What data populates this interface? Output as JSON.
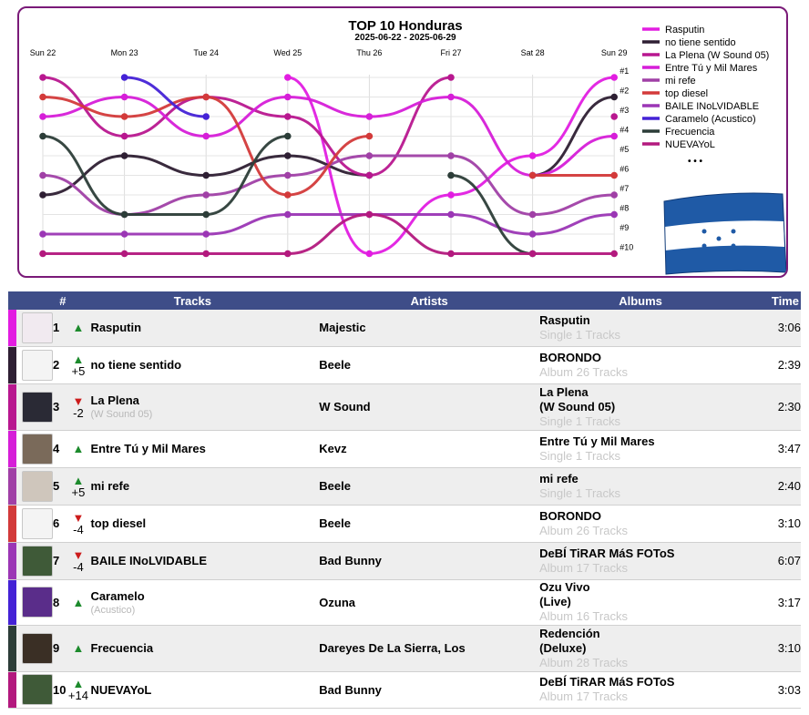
{
  "chart_data": {
    "type": "line",
    "title": "TOP 10 Honduras",
    "subtitle": "2025-06-22 - 2025-06-29",
    "x": [
      "Sun 22",
      "Mon 23",
      "Tue 24",
      "Wed 25",
      "Thu 26",
      "Fri 27",
      "Sat 28",
      "Sun 29"
    ],
    "rank_labels": [
      "#1",
      "#2",
      "#3",
      "#4",
      "#5",
      "#6",
      "#7",
      "#8",
      "#9",
      "#10"
    ],
    "ylim": [
      1,
      10
    ],
    "y_inverted": true,
    "legend_placement": "top-right",
    "legend_more": "• • •",
    "series": [
      {
        "name": "Rasputin",
        "color": "#e21de1",
        "values": [
          null,
          null,
          null,
          1,
          10,
          7,
          5,
          1
        ]
      },
      {
        "name": "no tiene sentido",
        "color": "#2e1f33",
        "values": [
          7,
          5,
          6,
          5,
          6,
          null,
          6,
          2
        ]
      },
      {
        "name": "La Plena (W Sound 05)",
        "color": "#b8178f",
        "values": [
          1,
          4,
          2,
          3,
          6,
          1,
          null,
          3
        ]
      },
      {
        "name": "Entre Tú y Mil Mares",
        "color": "#d61ed8",
        "values": [
          3,
          2,
          4,
          2,
          3,
          2,
          6,
          4
        ]
      },
      {
        "name": "mi refe",
        "color": "#a040a6",
        "values": [
          6,
          8,
          7,
          6,
          5,
          5,
          8,
          7
        ]
      },
      {
        "name": "top diesel",
        "color": "#d33a3a",
        "values": [
          2,
          3,
          2,
          7,
          4,
          null,
          6,
          6
        ]
      },
      {
        "name": "BAILE INoLVIDABLE",
        "color": "#9b36b5",
        "values": [
          9,
          9,
          9,
          8,
          8,
          8,
          9,
          8
        ]
      },
      {
        "name": "Caramelo (Acustico)",
        "color": "#4422d6",
        "values": [
          null,
          1,
          3,
          null,
          null,
          null,
          null,
          null
        ]
      },
      {
        "name": "Frecuencia",
        "color": "#2c3d38",
        "values": [
          4,
          8,
          8,
          4,
          null,
          6,
          10,
          null
        ]
      },
      {
        "name": "NUEVAYoL",
        "color": "#b3197e",
        "values": [
          10,
          10,
          10,
          10,
          8,
          10,
          10,
          10
        ]
      }
    ]
  },
  "table": {
    "headers": {
      "num": "#",
      "tracks": "Tracks",
      "artists": "Artists",
      "albums": "Albums",
      "time": "Time"
    },
    "rows": [
      {
        "rank": "1",
        "title": "Rasputin",
        "subtitle": "",
        "move": "",
        "dir": "up",
        "artist": "Majestic",
        "album": "Rasputin",
        "album_sub": "Single 1 Tracks",
        "time": "3:06",
        "color": "#e21de1",
        "thumb": "#f1eaf0"
      },
      {
        "rank": "2",
        "title": "no tiene sentido",
        "subtitle": "",
        "move": "+5",
        "dir": "up",
        "artist": "Beele",
        "album": "BORONDO",
        "album_sub": "Album 26 Tracks",
        "time": "2:39",
        "color": "#2e1f33",
        "thumb": "#f4f4f4"
      },
      {
        "rank": "3",
        "title": "La Plena",
        "subtitle": "(W Sound 05)",
        "move": "-2",
        "dir": "down",
        "artist": "W Sound",
        "album": "La Plena\n(W Sound 05)",
        "album_sub": "Single 1 Tracks",
        "time": "2:30",
        "color": "#b8178f",
        "thumb": "#2a2a35"
      },
      {
        "rank": "4",
        "title": "Entre Tú y Mil Mares",
        "subtitle": "",
        "move": "",
        "dir": "up",
        "artist": "Kevz",
        "album": "Entre Tú y Mil Mares",
        "album_sub": "Single 1 Tracks",
        "time": "3:47",
        "color": "#d61ed8",
        "thumb": "#7a6a5a"
      },
      {
        "rank": "5",
        "title": "mi refe",
        "subtitle": "",
        "move": "+5",
        "dir": "up",
        "artist": "Beele",
        "album": "mi refe",
        "album_sub": "Single 1 Tracks",
        "time": "2:40",
        "color": "#a040a6",
        "thumb": "#cfc6bc"
      },
      {
        "rank": "6",
        "title": "top diesel",
        "subtitle": "",
        "move": "-4",
        "dir": "down",
        "artist": "Beele",
        "album": "BORONDO",
        "album_sub": "Album 26 Tracks",
        "time": "3:10",
        "color": "#d33a3a",
        "thumb": "#f4f4f4"
      },
      {
        "rank": "7",
        "title": "BAILE INoLVIDABLE",
        "subtitle": "",
        "move": "-4",
        "dir": "down",
        "artist": "Bad Bunny",
        "album": "DeBÍ TiRAR MáS FOToS",
        "album_sub": "Album 17 Tracks",
        "time": "6:07",
        "color": "#9b36b5",
        "thumb": "#3f5a38"
      },
      {
        "rank": "8",
        "title": "Caramelo",
        "subtitle": "(Acustico)",
        "move": "",
        "dir": "up",
        "artist": "Ozuna",
        "album": "Ozu Vivo\n(Live)",
        "album_sub": "Album 16 Tracks",
        "time": "3:17",
        "color": "#4422d6",
        "thumb": "#5a2d8a"
      },
      {
        "rank": "9",
        "title": "Frecuencia",
        "subtitle": "",
        "move": "",
        "dir": "up",
        "artist": "Dareyes De La Sierra, Los",
        "album": "Redención\n(Deluxe)",
        "album_sub": "Album 28 Tracks",
        "time": "3:10",
        "color": "#2c3d38",
        "thumb": "#3a2f25"
      },
      {
        "rank": "10",
        "title": "NUEVAYoL",
        "subtitle": "",
        "move": "+14",
        "dir": "up",
        "artist": "Bad Bunny",
        "album": "DeBÍ TiRAR MáS FOToS",
        "album_sub": "Album 17 Tracks",
        "time": "3:03",
        "color": "#b3197e",
        "thumb": "#3f5a38"
      }
    ]
  },
  "arrows": {
    "up": "▲",
    "down": "▼"
  }
}
